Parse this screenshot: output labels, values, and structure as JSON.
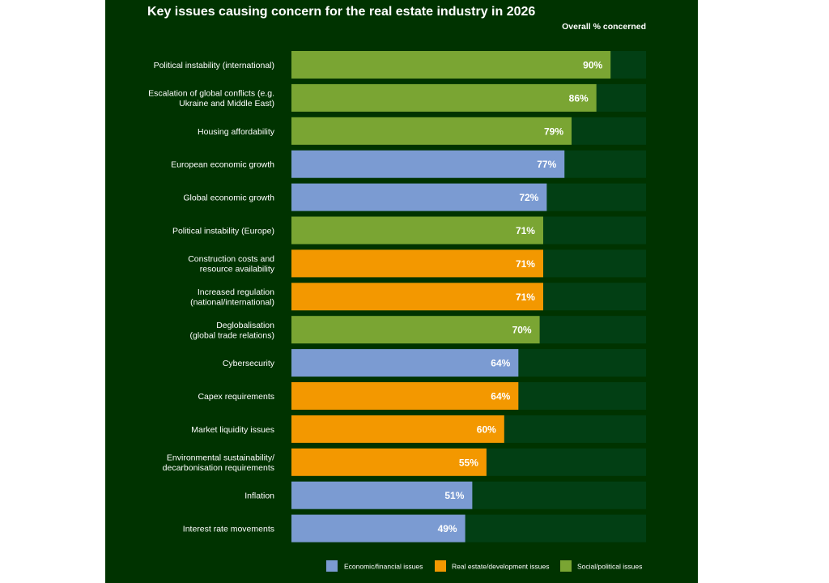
{
  "chart_data": {
    "type": "bar",
    "orientation": "horizontal",
    "title": "Key issues causing concern for the real estate industry in 2026",
    "value_header": "Overall % concerned",
    "xlim": [
      0,
      100
    ],
    "categories": [
      [
        "Political instability (international)"
      ],
      [
        "Escalation of global conflicts (e.g.",
        "Ukraine and Middle East)"
      ],
      [
        "Housing affordability"
      ],
      [
        "European economic growth"
      ],
      [
        "Global economic growth"
      ],
      [
        "Political instability (Europe)"
      ],
      [
        "Construction costs and",
        "resource availability"
      ],
      [
        "Increased regulation",
        "(national/international)"
      ],
      [
        "Deglobalisation",
        "(global trade relations)"
      ],
      [
        "Cybersecurity"
      ],
      [
        "Capex requirements"
      ],
      [
        "Market liquidity issues"
      ],
      [
        "Environmental sustainability/",
        "decarbonisation requirements"
      ],
      [
        "Inflation"
      ],
      [
        "Interest rate movements"
      ]
    ],
    "values": [
      90,
      86,
      79,
      77,
      72,
      71,
      71,
      71,
      70,
      64,
      64,
      60,
      55,
      51,
      49
    ],
    "value_labels": [
      "90%",
      "86%",
      "79%",
      "77%",
      "72%",
      "71%",
      "71%",
      "71%",
      "70%",
      "64%",
      "64%",
      "60%",
      "55%",
      "51%",
      "49%"
    ],
    "groups": [
      "social",
      "social",
      "social",
      "economic",
      "economic",
      "social",
      "realestate",
      "realestate",
      "social",
      "economic",
      "realestate",
      "realestate",
      "realestate",
      "economic",
      "economic"
    ],
    "legend": [
      {
        "key": "economic",
        "label": "Economic/financial issues",
        "color": "#7b9bd2"
      },
      {
        "key": "realestate",
        "label": "Real estate/development issues",
        "color": "#f39800"
      },
      {
        "key": "social",
        "label": "Social/political issues",
        "color": "#7aa533"
      }
    ],
    "legend_position": "bottom-right"
  },
  "colors": {
    "background": "#003300",
    "track": "#023f14",
    "text": "#ffffff"
  }
}
